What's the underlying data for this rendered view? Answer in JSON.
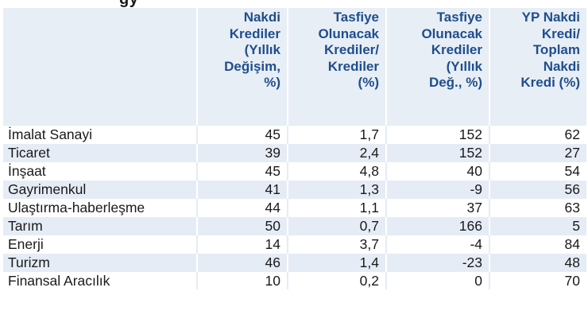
{
  "header_fragment": "gy",
  "columns": [
    "",
    "Nakdi Krediler (Yıllık Değişim, %)",
    "Tasfiye Olunacak Krediler/ Krediler (%)",
    "Tasfiye Olunacak Krediler (Yıllık Değ., %)",
    "YP Nakdi Kredi/ Toplam Nakdi Kredi (%)"
  ],
  "column_lines": [
    [],
    [
      "Nakdi",
      "Krediler",
      "(Yıllık",
      "Değişim,",
      "%)"
    ],
    [
      "Tasfiye",
      "Olunacak",
      "Krediler/",
      "Krediler",
      "(%)"
    ],
    [
      "Tasfiye",
      "Olunacak",
      "Krediler",
      "(Yıllık",
      "Değ., %)"
    ],
    [
      "YP Nakdi",
      "Kredi/",
      "Toplam",
      "Nakdi",
      "Kredi (%)"
    ]
  ],
  "rows": [
    {
      "sector": "İmalat Sanayi",
      "c1": "45",
      "c2": "1,7",
      "c3": "152",
      "c4": "62"
    },
    {
      "sector": "Ticaret",
      "c1": "39",
      "c2": "2,4",
      "c3": "152",
      "c4": "27"
    },
    {
      "sector": "İnşaat",
      "c1": "45",
      "c2": "4,8",
      "c3": "40",
      "c4": "54"
    },
    {
      "sector": "Gayrimenkul",
      "c1": "41",
      "c2": "1,3",
      "c3": "-9",
      "c4": "56"
    },
    {
      "sector": "Ulaştırma-haberleşme",
      "c1": "44",
      "c2": "1,1",
      "c3": "37",
      "c4": "63"
    },
    {
      "sector": "Tarım",
      "c1": "50",
      "c2": "0,7",
      "c3": "166",
      "c4": "5"
    },
    {
      "sector": "Enerji",
      "c1": "14",
      "c2": "3,7",
      "c3": "-4",
      "c4": "84"
    },
    {
      "sector": "Turizm",
      "c1": "46",
      "c2": "1,4",
      "c3": "-23",
      "c4": "48"
    },
    {
      "sector": "Finansal Aracılık",
      "c1": "10",
      "c2": "0,2",
      "c3": "0",
      "c4": "70"
    }
  ],
  "colors": {
    "header_text": "#1f4e8c",
    "header_bg": "#e8eef6",
    "stripe_bg": "#e5ecf5",
    "text": "#1a1a1a"
  }
}
